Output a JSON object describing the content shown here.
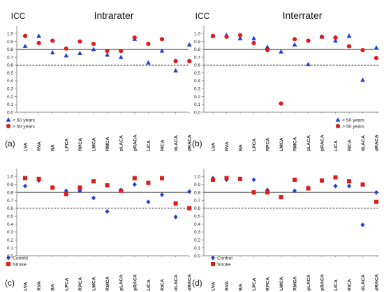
{
  "figure": {
    "ylabel": "ICC",
    "categories": [
      "LVA",
      "RVA",
      "BA",
      "LPCA",
      "RPCA",
      "LMCA",
      "RMCA",
      "pLACA",
      "pRACA",
      "LICA",
      "RICA",
      "dLACA",
      "dRACA"
    ]
  },
  "chart_data": [
    {
      "type": "scatter",
      "panel_label": "(a)",
      "title": "Intrarater",
      "ylabel": "ICC",
      "categories": [
        "LVA",
        "RVA",
        "BA",
        "LPCA",
        "RPCA",
        "LMCA",
        "RMCA",
        "pLACA",
        "pRACA",
        "LICA",
        "RICA",
        "dLACA",
        "dRACA"
      ],
      "ylim": [
        0,
        1.1
      ],
      "yticks": [
        "0.0",
        "0.1",
        "0.2",
        "0.3",
        "0.4",
        "0.5",
        "0.6",
        "0.7",
        "0.8",
        "0.9",
        "1.0"
      ],
      "reference_lines": [
        {
          "y": 0.8,
          "style": "solid"
        },
        {
          "y": 0.6,
          "style": "dashed"
        }
      ],
      "legend_position": "bottom-left",
      "series": [
        {
          "name": "< 50 years",
          "marker": "triangle",
          "color": "#1f3fd6",
          "values": [
            0.84,
            0.97,
            0.76,
            0.72,
            0.75,
            0.8,
            0.73,
            0.7,
            0.93,
            0.63,
            0.78,
            0.53,
            0.86
          ]
        },
        {
          "name": "> 50 years",
          "marker": "circle",
          "color": "#e01b1b",
          "values": [
            0.97,
            0.88,
            0.91,
            0.81,
            0.9,
            0.87,
            0.78,
            0.78,
            0.95,
            0.87,
            0.93,
            0.65,
            0.65
          ]
        }
      ]
    },
    {
      "type": "scatter",
      "panel_label": "(b)",
      "title": "Interrater",
      "ylabel": "ICC",
      "categories": [
        "LVA",
        "RVA",
        "BA",
        "LPCA",
        "RPCA",
        "LMCA",
        "RMCA",
        "pLACA",
        "pRACA",
        "LICA",
        "RICA",
        "dLACA",
        "dRACA"
      ],
      "ylim": [
        0,
        1.1
      ],
      "yticks": [
        "0.0",
        "0.1",
        "0.2",
        "0.3",
        "0.4",
        "0.5",
        "0.6",
        "0.7",
        "0.8",
        "0.9",
        "1.0"
      ],
      "reference_lines": [
        {
          "y": 0.8,
          "style": "solid"
        },
        {
          "y": 0.6,
          "style": "dashed"
        }
      ],
      "legend_position": "bottom-right",
      "series": [
        {
          "name": "< 50 years",
          "marker": "triangle",
          "color": "#1f3fd6",
          "values": [
            0.97,
            0.98,
            0.94,
            0.94,
            0.83,
            0.77,
            0.86,
            0.61,
            0.96,
            0.91,
            0.97,
            0.41,
            0.82
          ]
        },
        {
          "name": "> 50 years",
          "marker": "circle",
          "color": "#e01b1b",
          "values": [
            0.97,
            0.96,
            0.98,
            0.88,
            0.79,
            0.11,
            0.93,
            0.91,
            0.96,
            0.95,
            0.84,
            0.79,
            0.69
          ]
        }
      ]
    },
    {
      "type": "scatter",
      "panel_label": "(c)",
      "title": "",
      "ylabel": "ICC",
      "categories": [
        "LVA",
        "RVA",
        "BA",
        "LPCA",
        "RPCA",
        "LMCA",
        "RMCA",
        "pLACA",
        "pRACA",
        "LICA",
        "RICA",
        "dLACA",
        "dRACA"
      ],
      "ylim": [
        0,
        1.1
      ],
      "yticks": [
        "0.0",
        "0.1",
        "0.2",
        "0.3",
        "0.4",
        "0.5",
        "0.6",
        "0.7",
        "0.8",
        "0.9",
        "1.0"
      ],
      "reference_lines": [
        {
          "y": 0.8,
          "style": "solid"
        },
        {
          "y": 0.6,
          "style": "dashed"
        }
      ],
      "legend_position": "bottom-left",
      "series": [
        {
          "name": "Control",
          "marker": "diamond",
          "color": "#1f3fd6",
          "values": [
            0.88,
            0.95,
            0.86,
            0.82,
            0.82,
            0.73,
            0.56,
            0.83,
            0.9,
            0.68,
            0.77,
            0.49,
            0.81
          ]
        },
        {
          "name": "Stroke",
          "marker": "square",
          "color": "#e01b1b",
          "values": [
            0.98,
            0.97,
            0.86,
            0.78,
            0.86,
            0.94,
            0.89,
            0.82,
            0.98,
            0.92,
            0.98,
            0.66,
            0.6
          ]
        }
      ]
    },
    {
      "type": "scatter",
      "panel_label": "(d)",
      "title": "",
      "ylabel": "ICC",
      "categories": [
        "LVA",
        "RVA",
        "BA",
        "LPCA",
        "RPCA",
        "LMCA",
        "RMCA",
        "pLACA",
        "pRACA",
        "LICA",
        "RICA",
        "dLACA",
        "dRACA"
      ],
      "ylim": [
        0,
        1.1
      ],
      "yticks": [
        "0.0",
        "0.1",
        "0.2",
        "0.3",
        "0.4",
        "0.5",
        "0.6",
        "0.7",
        "0.8",
        "0.9",
        "1.0"
      ],
      "reference_lines": [
        {
          "y": 0.8,
          "style": "solid"
        },
        {
          "y": 0.6,
          "style": "dashed"
        }
      ],
      "legend_position": "bottom-left",
      "series": [
        {
          "name": "Control",
          "marker": "diamond",
          "color": "#1f3fd6",
          "values": [
            0.98,
            0.96,
            0.97,
            0.96,
            0.83,
            0.74,
            0.82,
            0.86,
            0.95,
            0.88,
            0.88,
            0.39,
            0.8
          ]
        },
        {
          "name": "Stroke",
          "marker": "square",
          "color": "#e01b1b",
          "values": [
            0.96,
            0.98,
            0.97,
            0.8,
            0.8,
            0.74,
            0.96,
            0.85,
            0.95,
            0.99,
            0.94,
            0.9,
            0.68
          ]
        }
      ]
    }
  ]
}
